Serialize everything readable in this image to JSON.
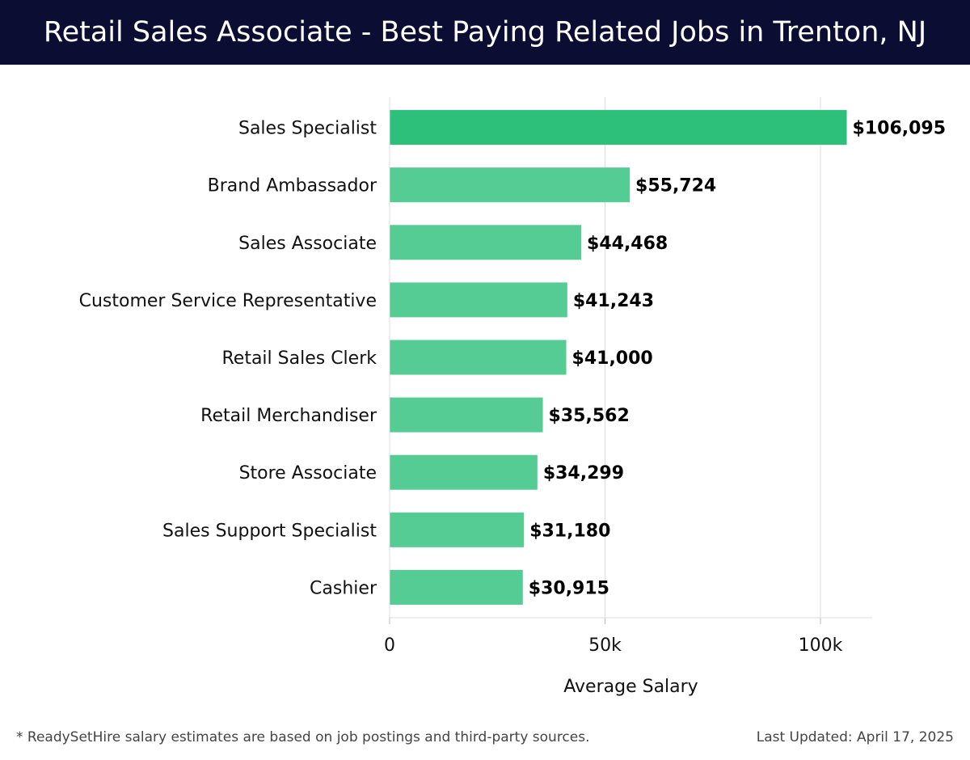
{
  "header": {
    "title": "Retail Sales Associate - Best Paying Related Jobs in Trenton, NJ"
  },
  "footer": {
    "note": "* ReadySetHire salary estimates are based on job postings and third-party sources.",
    "updated": "Last Updated: April 17, 2025"
  },
  "colors": {
    "header_bg": "#0b0d33",
    "top_bar": "#2cc07a",
    "bar": "#55cc94",
    "grid": "#dddddd"
  },
  "chart_data": {
    "type": "bar",
    "orientation": "horizontal",
    "title": "Retail Sales Associate - Best Paying Related Jobs in Trenton, NJ",
    "xlabel": "Average Salary",
    "ylabel": "",
    "xlim": [
      0,
      112000
    ],
    "grid": true,
    "categories": [
      "Sales Specialist",
      "Brand Ambassador",
      "Sales Associate",
      "Customer Service Representative",
      "Retail Sales Clerk",
      "Retail Merchandiser",
      "Store Associate",
      "Sales Support Specialist",
      "Cashier"
    ],
    "values": [
      106095,
      55724,
      44468,
      41243,
      41000,
      35562,
      34299,
      31180,
      30915
    ],
    "value_labels": [
      "$106,095",
      "$55,724",
      "$44,468",
      "$41,243",
      "$41,000",
      "$35,562",
      "$34,299",
      "$31,180",
      "$30,915"
    ],
    "ticks": [
      0,
      50000,
      100000
    ],
    "tick_labels": [
      "0",
      "50k",
      "100k"
    ]
  }
}
